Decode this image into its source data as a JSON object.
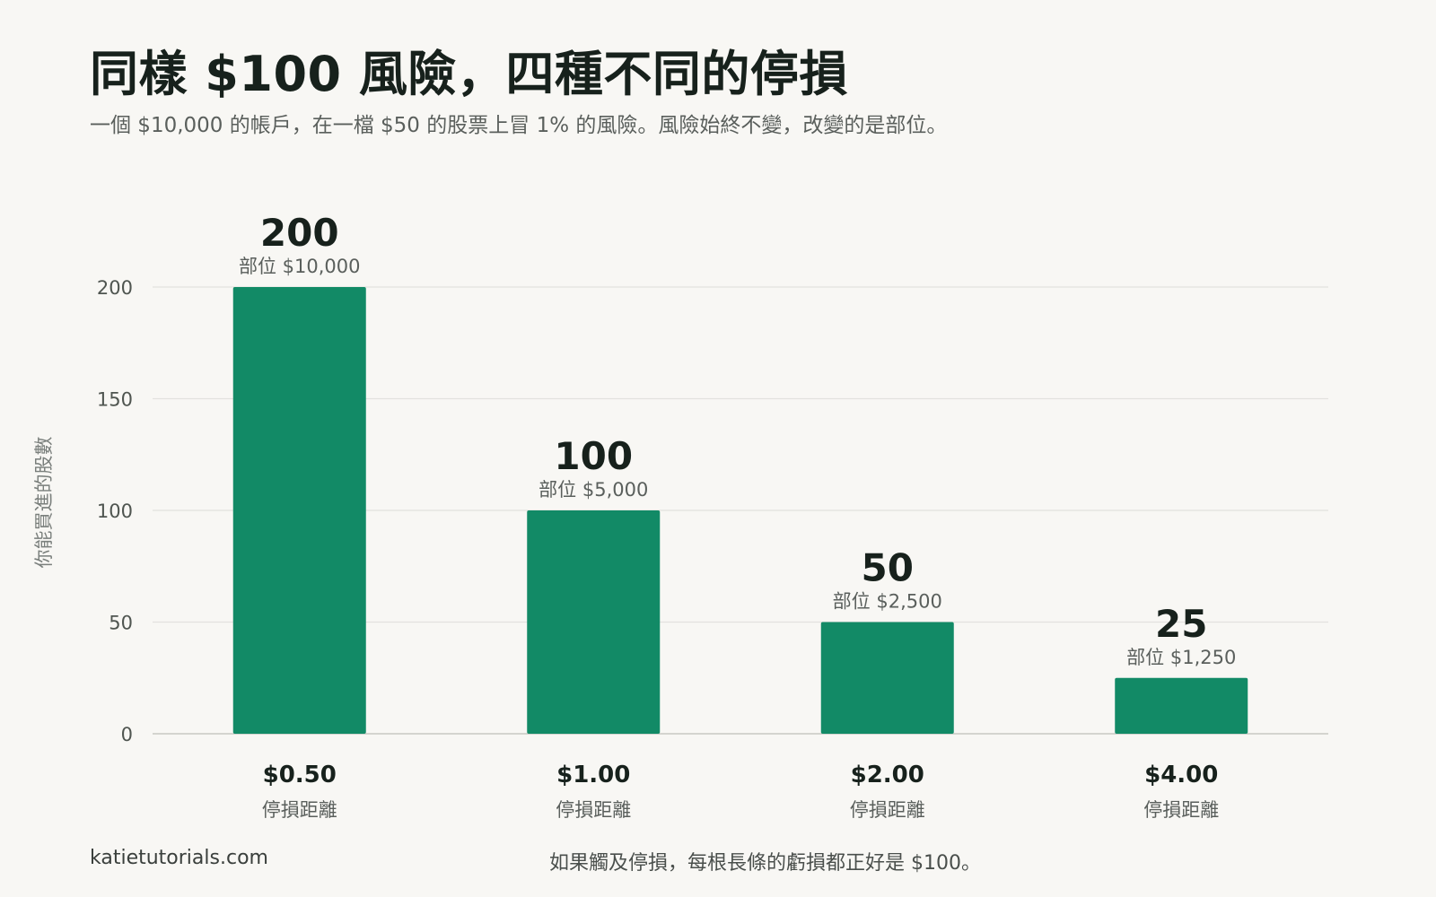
{
  "header": {
    "title": "同樣 $100 風險，四種不同的停損",
    "subtitle": "一個 $10,000 的帳戶，在一檔 $50 的股票上冒 1% 的風險。風險始終不變，改變的是部位。"
  },
  "footer": {
    "source": "katietutorials.com",
    "note": "如果觸及停損，每根長條的虧損都正好是 $100。"
  },
  "colors": {
    "bar": "#128a66",
    "grid": "#e2e2de",
    "axis_text": "#4f5550",
    "value_text": "#17211c"
  },
  "chart_data": {
    "type": "bar",
    "ylabel": "你能買進的股數",
    "xlabel": "",
    "ylim": [
      0,
      200
    ],
    "yticks": [
      0,
      50,
      100,
      150,
      200
    ],
    "grid": true,
    "categories": [
      "$0.50",
      "$1.00",
      "$2.00",
      "$4.00"
    ],
    "category_sublabels": [
      "停損距離",
      "停損距離",
      "停損距離",
      "停損距離"
    ],
    "values": [
      200,
      100,
      50,
      25
    ],
    "value_labels": [
      "200",
      "100",
      "50",
      "25"
    ],
    "position_labels": [
      "部位 $10,000",
      "部位 $5,000",
      "部位 $2,500",
      "部位 $1,250"
    ]
  }
}
